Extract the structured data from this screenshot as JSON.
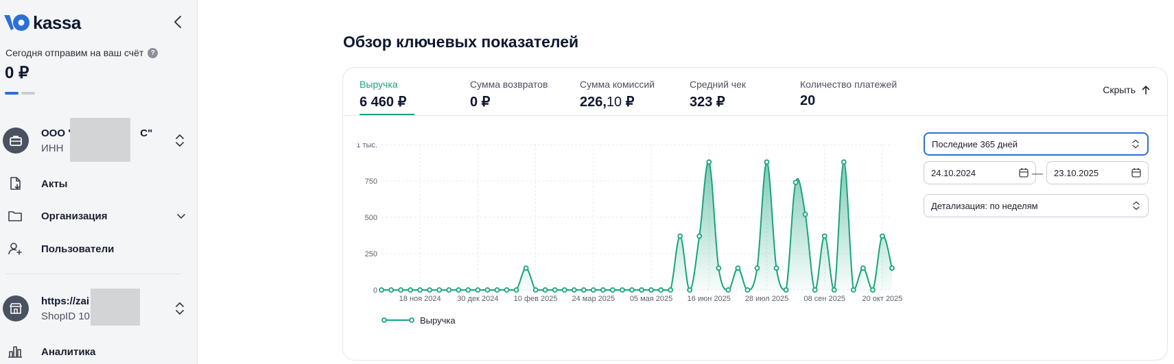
{
  "brand": {
    "name": "kassa"
  },
  "sidebar": {
    "payout_label": "Сегодня отправим на ваш счёт",
    "payout_help": "?",
    "payout_amount": "0 ₽",
    "organization": {
      "title": "ООО \"",
      "title_end": "С\"",
      "subtitle": "ИНН"
    },
    "nav": [
      {
        "label": "Акты",
        "icon": "document-download-icon"
      },
      {
        "label": "Организация",
        "icon": "folder-icon"
      },
      {
        "label": "Пользователи",
        "icon": "add-user-icon"
      }
    ],
    "shop": {
      "title": "https://zai",
      "subtitle": "ShopID 10"
    },
    "analytics": {
      "label": "Аналитика",
      "icon": "bar-chart-icon"
    }
  },
  "main": {
    "title": "Обзор ключевых показателей",
    "metrics": [
      {
        "label": "Выручка",
        "value": "6 460 ₽",
        "active": true
      },
      {
        "label": "Сумма возвратов",
        "value": "0 ₽"
      },
      {
        "label": "Сумма комиссий",
        "value_int": "226,",
        "value_frac": "10",
        "value_cur": " ₽"
      },
      {
        "label": "Средний чек",
        "value": "323 ₽"
      },
      {
        "label": "Количество платежей",
        "value": "20"
      }
    ],
    "hide_label": "Скрыть",
    "period": "Последние 365 дней",
    "date_from": "24.10.2024",
    "date_to": "23.10.2025",
    "dash": "—",
    "detail": "Детализация: по неделям"
  },
  "chart_data": {
    "type": "area",
    "series": [
      {
        "name": "Выручка",
        "values": [
          0,
          0,
          0,
          0,
          0,
          0,
          0,
          0,
          0,
          0,
          0,
          0,
          0,
          0,
          0,
          150,
          0,
          0,
          0,
          0,
          0,
          0,
          0,
          0,
          0,
          0,
          0,
          0,
          0,
          0,
          0,
          370,
          0,
          370,
          880,
          150,
          0,
          150,
          0,
          150,
          880,
          150,
          0,
          740,
          520,
          0,
          370,
          0,
          880,
          0,
          150,
          0,
          370,
          150
        ]
      }
    ],
    "x_tick_labels": [
      "18 ноя 2024",
      "30 дек 2024",
      "10 фев 2025",
      "24 мар 2025",
      "05 мая 2025",
      "16 июн 2025",
      "28 июл 2025",
      "08 сен 2025",
      "20 окт 2025"
    ],
    "x_tick_indices": [
      4,
      10,
      16,
      22,
      28,
      34,
      40,
      46,
      52
    ],
    "y_tick_labels": [
      "0",
      "250",
      "500",
      "750",
      "1 тыс."
    ],
    "y_ticks": [
      0,
      250,
      500,
      750,
      1000
    ],
    "ylim": [
      0,
      1000
    ],
    "grid": true,
    "legend": "bottom-left",
    "color": "#17a37d"
  }
}
